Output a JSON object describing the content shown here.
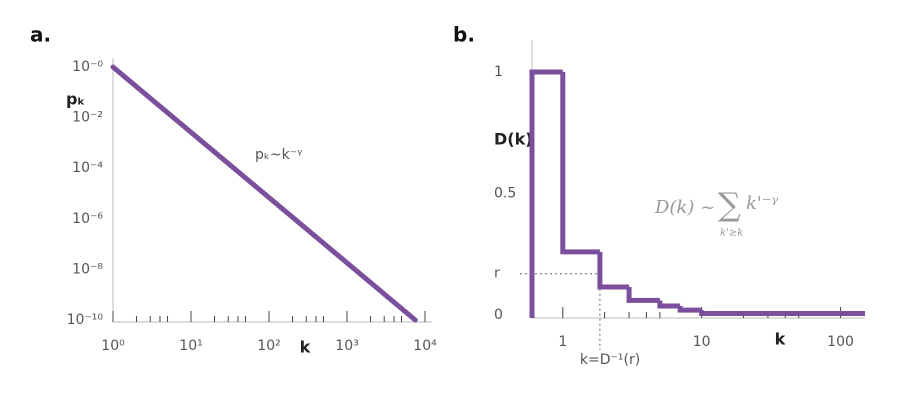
{
  "chart_data": [
    {
      "type": "line",
      "panel": "a.",
      "x_label": "k",
      "y_label": "pₖ",
      "annotation": "pₖ~k⁻ᵞ",
      "log_x": true,
      "log_y": true,
      "color": "#7b4f9c",
      "x": [
        1,
        7500
      ],
      "values": [
        1,
        1e-10
      ],
      "xlim": [
        1,
        10000
      ],
      "ylim": [
        1e-10,
        1
      ],
      "xticks": [
        {
          "value": 1,
          "label": "10⁰"
        },
        {
          "value": 10,
          "label": "10¹"
        },
        {
          "value": 100,
          "label": "10²"
        },
        {
          "value": 1000,
          "label": "10³"
        },
        {
          "value": 10000,
          "label": "10⁴"
        }
      ],
      "yticks": [
        {
          "value": 1,
          "label": "10⁻⁰"
        },
        {
          "value": 0.01,
          "label": "10⁻²"
        },
        {
          "value": 0.0001,
          "label": "10⁻⁴"
        },
        {
          "value": 1e-06,
          "label": "10⁻⁶"
        },
        {
          "value": 1e-08,
          "label": "10⁻⁸"
        },
        {
          "value": 1e-10,
          "label": "10⁻¹⁰"
        }
      ]
    },
    {
      "type": "step",
      "panel": "b.",
      "x_label": "k",
      "y_label": "D(k)",
      "formula": {
        "lhs": "D(k) ~",
        "sum": "∑",
        "sub": "k'≥k",
        "term": "k'⁻ᵞ"
      },
      "log_x": true,
      "log_y": false,
      "color": "#7b4f9c",
      "x": [
        0.6,
        1,
        1.85,
        3,
        5,
        7,
        10
      ],
      "values": [
        1,
        0.26,
        0.115,
        0.06,
        0.037,
        0.02,
        0.006
      ],
      "xlim": [
        0.6,
        150
      ],
      "ylim": [
        0,
        1.1
      ],
      "xticks": [
        1,
        10,
        100
      ],
      "yticks": [
        0,
        {
          "value": 0.17,
          "label": "r"
        },
        0.5,
        1
      ],
      "marker": {
        "x": 1.85,
        "label": "k=D⁻¹(r)"
      }
    }
  ]
}
